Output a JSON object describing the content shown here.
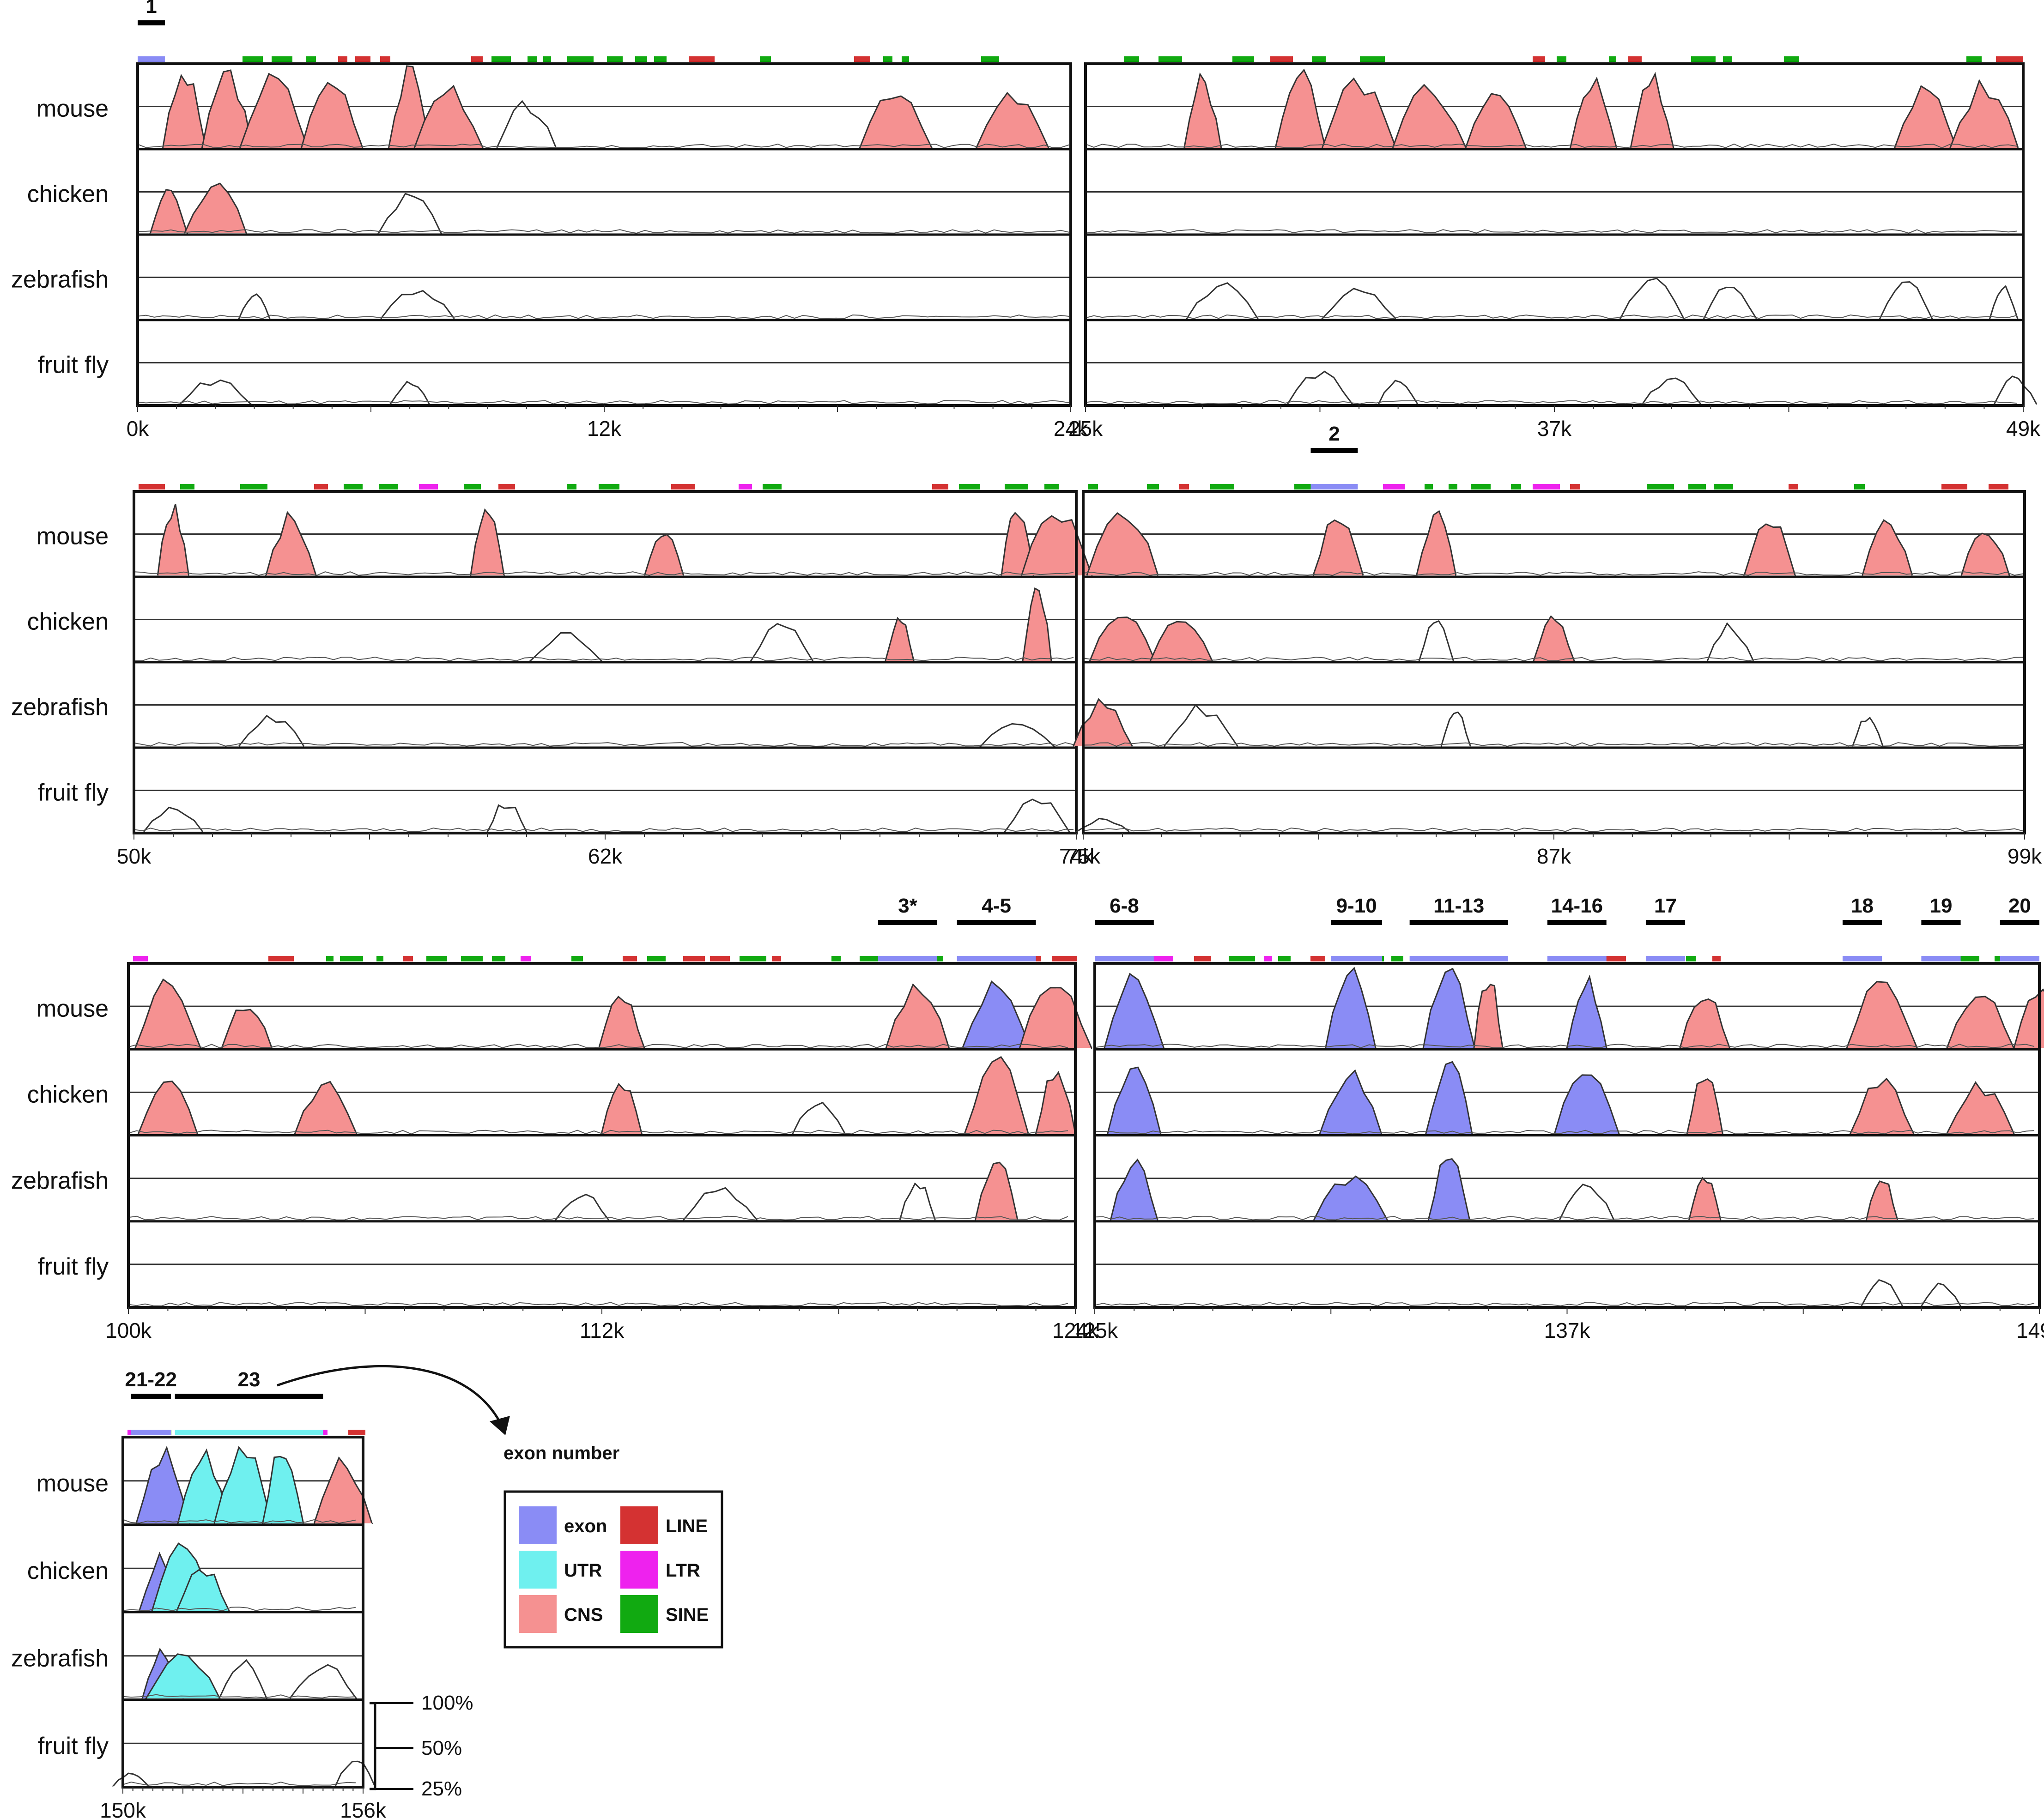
{
  "chart_data": {
    "type": "area",
    "title": "",
    "species": [
      "mouse",
      "chicken",
      "zebrafish",
      "fruit fly"
    ],
    "scale_labels": [
      "100%",
      "50%",
      "25%"
    ],
    "legend": [
      {
        "name": "exon",
        "color": "#8a8cf5"
      },
      {
        "name": "LINE",
        "color": "#d43232"
      },
      {
        "name": "UTR",
        "color": "#6ff0ef"
      },
      {
        "name": "LTR",
        "color": "#ee22ee"
      },
      {
        "name": "CNS",
        "color": "#f59191"
      },
      {
        "name": "SINE",
        "color": "#11aa11"
      }
    ],
    "exon_callout": "exon number",
    "panels": [
      {
        "xlim": [
          0,
          24000
        ],
        "ticks": [
          "0k",
          "12k",
          "24k"
        ],
        "exons": [
          {
            "label": "1",
            "start": 0,
            "end": 700
          }
        ],
        "peaks": [
          [
            [
              1200,
              85,
              "CNS"
            ],
            [
              2300,
              90,
              "CNS"
            ],
            [
              3500,
              82,
              "CNS"
            ],
            [
              5000,
              80,
              "CNS"
            ],
            [
              7000,
              88,
              "CNS"
            ],
            [
              8000,
              70,
              "CNS"
            ],
            [
              10000,
              50,
              "none"
            ],
            [
              19500,
              72,
              "CNS"
            ],
            [
              22500,
              60,
              "CNS"
            ]
          ],
          [
            [
              800,
              55,
              "CNS"
            ],
            [
              2000,
              60,
              "CNS"
            ],
            [
              7000,
              45,
              "CNS"
            ]
          ],
          [
            [
              3000,
              30,
              "CNS"
            ],
            [
              7200,
              35,
              "none"
            ]
          ],
          [
            [
              2000,
              28,
              "none"
            ],
            [
              7000,
              25,
              "none"
            ]
          ]
        ]
      },
      {
        "xlim": [
          25000,
          49000
        ],
        "ticks": [
          "25k",
          "37k",
          "49k"
        ],
        "exons": [],
        "peaks": [
          [
            [
              28000,
              80,
              "CNS"
            ],
            [
              30500,
              95,
              "CNS"
            ],
            [
              32000,
              78,
              "CNS"
            ],
            [
              33800,
              70,
              "CNS"
            ],
            [
              35500,
              65,
              "CNS"
            ],
            [
              38000,
              75,
              "CNS"
            ],
            [
              39500,
              82,
              "CNS"
            ],
            [
              46500,
              70,
              "CNS"
            ],
            [
              48000,
              72,
              "CNS"
            ]
          ],
          [],
          [
            [
              28500,
              40,
              "none"
            ],
            [
              32000,
              35,
              "none"
            ],
            [
              39500,
              45,
              "none"
            ],
            [
              41500,
              38,
              "CNS"
            ],
            [
              46000,
              42,
              "none"
            ],
            [
              48500,
              38,
              "none"
            ]
          ],
          [
            [
              31000,
              35,
              "none"
            ],
            [
              33000,
              30,
              "CNS"
            ],
            [
              40000,
              30,
              "none"
            ],
            [
              48800,
              30,
              "none"
            ]
          ]
        ]
      },
      {
        "xlim": [
          50000,
          74000
        ],
        "ticks": [
          "50k",
          "62k",
          "74k"
        ],
        "exons": [],
        "peaks": [
          [
            [
              51000,
              80,
              "CNS"
            ],
            [
              54000,
              70,
              "CNS"
            ],
            [
              59000,
              75,
              "CNS"
            ],
            [
              63500,
              55,
              "CNS"
            ],
            [
              72500,
              85,
              "CNS"
            ],
            [
              73500,
              78,
              "CNS"
            ]
          ],
          [
            [
              61000,
              30,
              "none"
            ],
            [
              66500,
              45,
              "CNS"
            ],
            [
              69500,
              50,
              "CNS"
            ],
            [
              73000,
              90,
              "CNS"
            ]
          ],
          [
            [
              53500,
              35,
              "none"
            ],
            [
              72500,
              30,
              "none"
            ]
          ],
          [
            [
              51000,
              30,
              "none"
            ],
            [
              59500,
              35,
              "none"
            ],
            [
              73000,
              40,
              "CNS"
            ]
          ]
        ]
      },
      {
        "xlim": [
          75000,
          99000
        ],
        "ticks": [
          "75k",
          "87k",
          "99k"
        ],
        "exons": [
          {
            "label": "2",
            "start": 80800,
            "end": 82000
          }
        ],
        "peaks": [
          [
            [
              76000,
              80,
              "CNS"
            ],
            [
              81500,
              70,
              "CNS"
            ],
            [
              84000,
              70,
              "CNS"
            ],
            [
              92500,
              65,
              "CNS"
            ],
            [
              95500,
              60,
              "CNS"
            ],
            [
              98000,
              55,
              "CNS"
            ]
          ],
          [
            [
              76000,
              60,
              "CNS"
            ],
            [
              77500,
              55,
              "CNS"
            ],
            [
              84000,
              45,
              "CNS"
            ],
            [
              87000,
              50,
              "CNS"
            ],
            [
              91500,
              40,
              "CNS"
            ]
          ],
          [
            [
              75500,
              50,
              "CNS"
            ],
            [
              78000,
              45,
              "CNS"
            ],
            [
              84500,
              40,
              "CNS"
            ],
            [
              95000,
              35,
              "none"
            ]
          ],
          [
            [
              75500,
              15,
              "none"
            ]
          ]
        ]
      },
      {
        "xlim": [
          100000,
          124000
        ],
        "ticks": [
          "100k",
          "112k",
          "124k"
        ],
        "exons": [
          {
            "label": "3*",
            "start": 119000,
            "end": 120500
          },
          {
            "label": "4-5",
            "start": 121000,
            "end": 123000
          }
        ],
        "peaks": [
          [
            [
              101000,
              80,
              "CNS"
            ],
            [
              103000,
              55,
              "CNS"
            ],
            [
              112500,
              60,
              "CNS"
            ],
            [
              120000,
              72,
              "CNS"
            ],
            [
              122000,
              80,
              "exon"
            ],
            [
              123500,
              78,
              "CNS"
            ]
          ],
          [
            [
              101000,
              65,
              "CNS"
            ],
            [
              105000,
              55,
              "CNS"
            ],
            [
              112500,
              60,
              "CNS"
            ],
            [
              117500,
              40,
              "CNS"
            ],
            [
              122000,
              85,
              "CNS"
            ],
            [
              123500,
              70,
              "CNS"
            ]
          ],
          [
            [
              111500,
              30,
              "none"
            ],
            [
              115000,
              35,
              "none"
            ],
            [
              120000,
              45,
              "CNS"
            ],
            [
              122000,
              70,
              "CNS"
            ]
          ],
          []
        ]
      },
      {
        "xlim": [
          125000,
          149000
        ],
        "ticks": [
          "125k",
          "137k",
          "149k"
        ],
        "exons": [
          {
            "label": "6-8",
            "start": 125000,
            "end": 126500
          },
          {
            "label": "9-10",
            "start": 131000,
            "end": 132300
          },
          {
            "label": "11-13",
            "start": 133000,
            "end": 135500
          },
          {
            "label": "14-16",
            "start": 136500,
            "end": 138000
          },
          {
            "label": "17",
            "start": 139000,
            "end": 140000
          },
          {
            "label": "18",
            "start": 144000,
            "end": 145000
          },
          {
            "label": "19",
            "start": 146000,
            "end": 147000
          },
          {
            "label": "20",
            "start": 148000,
            "end": 149000
          }
        ],
        "peaks": [
          [
            [
              126000,
              80,
              "exon"
            ],
            [
              131500,
              85,
              "exon"
            ],
            [
              134000,
              90,
              "exon"
            ],
            [
              135000,
              85,
              "CNS"
            ],
            [
              137500,
              80,
              "exon"
            ],
            [
              140500,
              60,
              "CNS"
            ],
            [
              145000,
              75,
              "CNS"
            ],
            [
              147500,
              60,
              "CNS"
            ],
            [
              149000,
              70,
              "CNS"
            ]
          ],
          [
            [
              126000,
              75,
              "exon"
            ],
            [
              131500,
              70,
              "exon"
            ],
            [
              134000,
              85,
              "exon"
            ],
            [
              137500,
              75,
              "exon"
            ],
            [
              140500,
              70,
              "CNS"
            ],
            [
              145000,
              60,
              "CNS"
            ],
            [
              147500,
              55,
              "CNS"
            ]
          ],
          [
            [
              126000,
              65,
              "exon"
            ],
            [
              131500,
              50,
              "exon"
            ],
            [
              134000,
              75,
              "exon"
            ],
            [
              137500,
              40,
              "CNS"
            ],
            [
              140500,
              55,
              "CNS"
            ],
            [
              145000,
              50,
              "CNS"
            ]
          ],
          [
            [
              145000,
              35,
              "CNS"
            ],
            [
              146500,
              25,
              "CNS"
            ]
          ]
        ]
      },
      {
        "xlim": [
          150000,
          156000
        ],
        "ticks": [
          "150k",
          "156k"
        ],
        "exons": [
          {
            "label": "21-22",
            "start": 150200,
            "end": 151200
          },
          {
            "label": "23",
            "start": 151300,
            "end": 155000
          }
        ],
        "peaks": [
          [
            [
              151000,
              80,
              "exon"
            ],
            [
              152000,
              80,
              "UTR"
            ],
            [
              153000,
              90,
              "UTR"
            ],
            [
              154000,
              85,
              "UTR"
            ],
            [
              155500,
              70,
              "CNS"
            ]
          ],
          [
            [
              151000,
              60,
              "exon"
            ],
            [
              151500,
              70,
              "UTR"
            ],
            [
              152000,
              50,
              "UTR"
            ]
          ],
          [
            [
              151000,
              55,
              "exon"
            ],
            [
              151500,
              50,
              "UTR"
            ],
            [
              153000,
              40,
              "UTR"
            ],
            [
              155000,
              40,
              "UTR"
            ]
          ],
          [
            [
              150200,
              15,
              "none"
            ],
            [
              155800,
              30,
              "CNS"
            ]
          ]
        ]
      }
    ]
  }
}
